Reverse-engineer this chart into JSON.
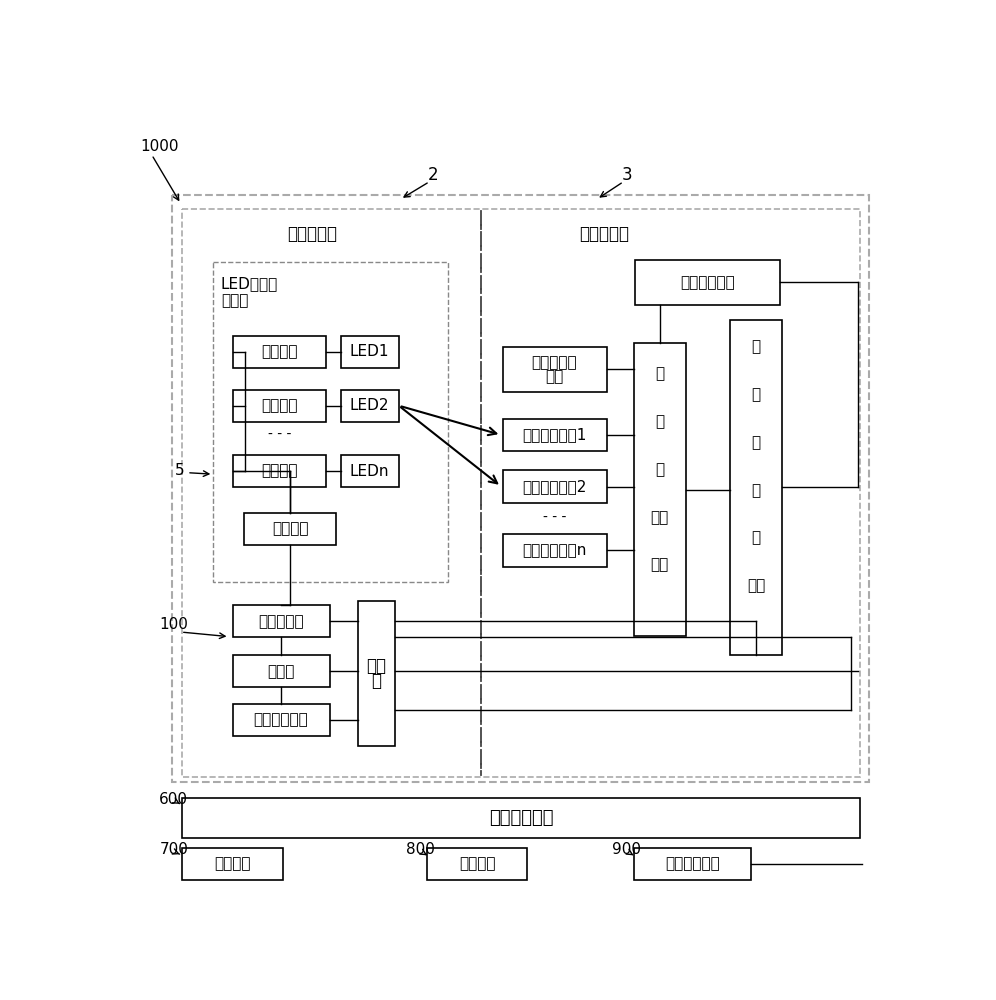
{
  "fig_width": 9.96,
  "fig_height": 10.0,
  "bg_color": "#ffffff",
  "label_1000": "1000",
  "label_2": "2",
  "label_3": "3",
  "label_5": "5",
  "label_100": "100",
  "label_600": "600",
  "label_700": "700",
  "label_800": "800",
  "label_900": "900",
  "text_upper_board": "上层测试板",
  "text_lower_board": "下层测试板",
  "text_led_circuit_1": "LED冰笱灯",
  "text_led_circuit_2": "电路板",
  "text_drive": "驱动支路",
  "text_led1": "LED1",
  "text_led2": "LED2",
  "text_ledn": "LEDn",
  "text_drive_power": "驱动电源",
  "text_lamp_interface": "灯板电接口",
  "text_pantograph": "受电弓",
  "text_test_power": "测试电源模块",
  "text_switch_1": "开关",
  "text_switch_2": "列",
  "text_adj_voltage_1": "可调基准电",
  "text_adj_voltage_2": "压源",
  "text_photoconv1": "光电转换电路1",
  "text_photoconv2": "光电转换电路2",
  "text_photoconvn": "光电转换电路n",
  "text_compare_1": "比",
  "text_compare_2": "较",
  "text_compare_3": "与",
  "text_compare_4": "逻辑",
  "text_compare_5": "电路",
  "text_trigger_1": "触",
  "text_trigger_2": "发",
  "text_trigger_3": "及",
  "text_trigger_4": "定",
  "text_trigger_5": "时",
  "text_trigger_6": "电路",
  "text_output_display": "输出显示电路",
  "text_carousel": "回转输送单元",
  "text_power_cable": "供电线缆",
  "text_feed": "上料单元",
  "text_detect": "检测分选单元"
}
